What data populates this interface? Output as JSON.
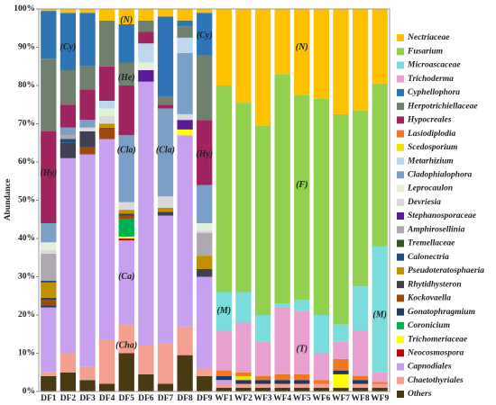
{
  "chart_data": {
    "type": "stacked_bar",
    "ylabel": "Abundance",
    "categories": [
      "DF1",
      "DF2",
      "DF3",
      "DF4",
      "DF5",
      "DF6",
      "DF7",
      "DF8",
      "DF9",
      "WF1",
      "WF2",
      "WF3",
      "WF4",
      "WF5",
      "WF6",
      "WF7",
      "WF8",
      "WF9"
    ],
    "ylim": [
      0,
      100
    ],
    "yticks": [
      {
        "value": 0,
        "label": "0%"
      },
      {
        "value": 10,
        "label": "10%"
      },
      {
        "value": 20,
        "label": "20%"
      },
      {
        "value": 30,
        "label": "30%"
      },
      {
        "value": 40,
        "label": "40%"
      },
      {
        "value": 50,
        "label": "50%"
      },
      {
        "value": 60,
        "label": "60%"
      },
      {
        "value": 70,
        "label": "70%"
      },
      {
        "value": 80,
        "label": "80%"
      },
      {
        "value": 90,
        "label": "90%"
      },
      {
        "value": 100,
        "label": "100%"
      }
    ],
    "series": [
      {
        "name": "Others",
        "color": "#4a3a12",
        "values": [
          4,
          5,
          3,
          2,
          10,
          4.5,
          2,
          9.5,
          4,
          1,
          1,
          1,
          1,
          1,
          1,
          1,
          1,
          1
        ]
      },
      {
        "name": "Chaetothyriales",
        "color": "#f4a090",
        "values": [
          1,
          5,
          3.5,
          11.5,
          7.5,
          7.5,
          10.5,
          7.5,
          2,
          1,
          1,
          1,
          1,
          1,
          1,
          0,
          1,
          1
        ]
      },
      {
        "name": "Capnodiales",
        "color": "#c8a0f0",
        "values": [
          17,
          51,
          55.5,
          52.5,
          22,
          69,
          33.5,
          50,
          24,
          1,
          0,
          0,
          0,
          0,
          0,
          0,
          0,
          0
        ]
      },
      {
        "name": "Neocosmospora",
        "color": "#c00000",
        "values": [
          0,
          0,
          0,
          0,
          0.5,
          0,
          0,
          0,
          0,
          0,
          0,
          0,
          0,
          0,
          0,
          0,
          0,
          0
        ]
      },
      {
        "name": "Trichomeriaceae",
        "color": "#ffff00",
        "values": [
          0,
          0,
          0,
          0,
          0.5,
          0,
          0,
          1.5,
          0,
          0,
          0,
          0,
          0,
          0,
          0,
          3.5,
          0,
          0
        ]
      },
      {
        "name": "Coronicium",
        "color": "#00b050",
        "values": [
          0,
          0,
          0,
          0,
          4.5,
          0,
          0,
          0,
          0,
          0,
          0,
          0,
          0,
          0,
          0,
          0,
          0,
          0
        ]
      },
      {
        "name": "Gonatophragmium",
        "color": "#203864",
        "values": [
          0.5,
          0,
          0,
          0,
          0,
          0,
          0,
          0,
          0,
          1,
          1,
          1,
          1,
          1,
          0,
          1,
          1,
          0
        ]
      },
      {
        "name": "Kockovaella",
        "color": "#9c4a10",
        "values": [
          1.5,
          0,
          2,
          3,
          1,
          0,
          0,
          0,
          0,
          0,
          0,
          0,
          0,
          0,
          0,
          0,
          0,
          0
        ]
      },
      {
        "name": "Rhytidhysteron",
        "color": "#404050",
        "values": [
          0.5,
          4,
          4,
          0,
          0.5,
          0,
          1,
          0,
          2,
          0,
          0,
          0,
          0,
          0,
          0,
          0,
          0,
          0
        ]
      },
      {
        "name": "Pseudoteratosphaeria",
        "color": "#bf9000",
        "values": [
          4,
          0,
          0,
          1,
          1,
          0,
          1,
          0,
          3.5,
          0,
          0,
          0,
          0,
          0,
          0,
          0,
          0,
          0
        ]
      },
      {
        "name": "Calonectria",
        "color": "#1f4e79",
        "values": [
          0.5,
          1,
          0,
          0,
          0,
          0,
          0,
          0,
          0,
          0,
          0,
          0,
          0,
          0,
          0,
          0,
          0,
          0
        ]
      },
      {
        "name": "Tremellaceae",
        "color": "#375623",
        "values": [
          0,
          0,
          0,
          0,
          0,
          0,
          0,
          0,
          0,
          0,
          0,
          0,
          0,
          0,
          0,
          0,
          0,
          0
        ]
      },
      {
        "name": "Amphirosellinia",
        "color": "#b0a8b0",
        "values": [
          7,
          1,
          0,
          0,
          0,
          0,
          0,
          0,
          6,
          0,
          0,
          0,
          0,
          0,
          0,
          0,
          0,
          0
        ]
      },
      {
        "name": "Stephanosporaceae",
        "color": "#5a1a9a",
        "values": [
          0,
          0,
          0,
          0,
          0,
          3,
          0,
          2.5,
          0,
          0,
          0,
          0,
          0,
          0,
          0,
          0,
          0,
          0
        ]
      },
      {
        "name": "Devriesia",
        "color": "#d9d9d9",
        "values": [
          1,
          0,
          1,
          2,
          2,
          0,
          3,
          1.5,
          0.5,
          0,
          0,
          0,
          0,
          0,
          0,
          0,
          0,
          0
        ]
      },
      {
        "name": "Leprocaulon",
        "color": "#e2efd9",
        "values": [
          2,
          0,
          0,
          2,
          0,
          2,
          0,
          0,
          2,
          0,
          0,
          0,
          0,
          0,
          0,
          0,
          0,
          0
        ]
      },
      {
        "name": "Cladophialophora",
        "color": "#7aa0c8",
        "values": [
          5,
          2,
          2,
          0,
          17.5,
          0,
          23,
          16,
          10,
          0,
          0,
          0,
          0,
          0,
          0,
          0,
          0,
          0
        ]
      },
      {
        "name": "Metarhizium",
        "color": "#bdd7ee",
        "values": [
          0,
          0,
          0,
          2,
          0,
          5,
          0,
          4,
          0,
          0,
          0,
          0,
          0,
          0,
          0,
          0,
          0,
          0
        ]
      },
      {
        "name": "Scedosporium",
        "color": "#f0e000",
        "values": [
          0,
          0,
          0,
          0,
          0,
          0,
          0,
          0,
          0,
          0,
          1,
          0,
          0,
          0,
          0,
          0,
          0,
          0
        ]
      },
      {
        "name": "Lasiodiplodia",
        "color": "#f07820",
        "values": [
          0,
          0,
          0,
          0,
          0,
          0,
          0,
          0,
          0,
          1.5,
          1,
          1,
          1.5,
          1.5,
          1,
          3,
          1,
          0.5
        ]
      },
      {
        "name": "Hypocreales",
        "color": "#a0245f",
        "values": [
          24,
          6,
          8,
          9,
          13,
          3,
          1,
          0,
          17,
          0,
          0,
          0,
          0,
          0,
          0,
          0,
          0,
          0
        ]
      },
      {
        "name": "Herpotrichiellaceae",
        "color": "#70806f",
        "values": [
          19,
          9,
          6,
          12,
          6,
          3,
          2,
          3,
          17,
          0,
          0,
          0,
          0,
          0,
          0,
          0,
          0,
          0
        ]
      },
      {
        "name": "Cyphellophora",
        "color": "#2e75b6",
        "values": [
          12.5,
          15,
          14,
          0,
          10,
          0,
          21,
          1.5,
          11,
          0,
          0,
          0,
          0,
          0,
          0,
          0,
          0,
          0
        ]
      },
      {
        "name": "Trichoderma",
        "color": "#e8a0d0",
        "values": [
          0,
          0,
          0,
          0,
          0,
          0,
          0,
          0,
          0,
          10.5,
          13,
          9,
          17.5,
          16.5,
          7,
          4.5,
          12,
          2.5
        ]
      },
      {
        "name": "Microascaceae",
        "color": "#7adcdc",
        "values": [
          0,
          0,
          0,
          0,
          0,
          0,
          0,
          0,
          0,
          10,
          8,
          7,
          1,
          3,
          10,
          4.5,
          11.5,
          33
        ]
      },
      {
        "name": "Fusarium",
        "color": "#92d050",
        "values": [
          0,
          0,
          0,
          0,
          0,
          0,
          0,
          0,
          0,
          54,
          49.5,
          49.5,
          60,
          53.5,
          56.5,
          55,
          46,
          42.5
        ]
      },
      {
        "name": "Nectriaceae",
        "color": "#ffc000",
        "values": [
          0.5,
          1,
          1,
          3,
          4,
          3,
          2,
          3,
          1,
          20,
          24.5,
          30.5,
          17,
          22.5,
          23.5,
          27.5,
          26.5,
          19.5
        ]
      }
    ],
    "annotations": [
      "(Cy)",
      "(He)",
      "(Hy)",
      "(Cla)",
      "(Cla)",
      "(Hy)",
      "(Ca)",
      "(Cha)",
      "(N)",
      "(Cy)",
      "(N)",
      "(F)",
      "(M)",
      "(T)",
      "(M)"
    ]
  }
}
